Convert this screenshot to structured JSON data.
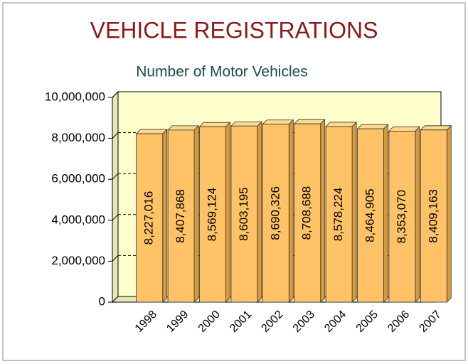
{
  "chart_data": {
    "type": "bar3d",
    "title": "VEHICLE REGISTRATIONS",
    "subtitle": "Number of Motor Vehicles",
    "categories": [
      "1998",
      "1999",
      "2000",
      "2001",
      "2002",
      "2003",
      "2004",
      "2005",
      "2006",
      "2007"
    ],
    "values": [
      8227016,
      8407868,
      8569124,
      8603195,
      8690326,
      8708688,
      8578224,
      8464905,
      8353070,
      8409163
    ],
    "value_labels": [
      "8,227,016",
      "8,407,868",
      "8,569,124",
      "8,603,195",
      "8,690,326",
      "8,708,688",
      "8,578,224",
      "8,464,905",
      "8,353,070",
      "8,409,163"
    ],
    "color": "#FFC266",
    "ylim": [
      0,
      10000000
    ],
    "yticks": [
      0,
      {
        "value": 2000000,
        "label": "2,000,000"
      },
      {
        "value": 4000000,
        "label": "4,000,000"
      },
      {
        "value": 6000000,
        "label": "6,000,000"
      },
      {
        "value": 8000000,
        "label": "8,000,000"
      },
      {
        "value": 10000000,
        "label": "10,000,000"
      }
    ],
    "grid": true
  }
}
